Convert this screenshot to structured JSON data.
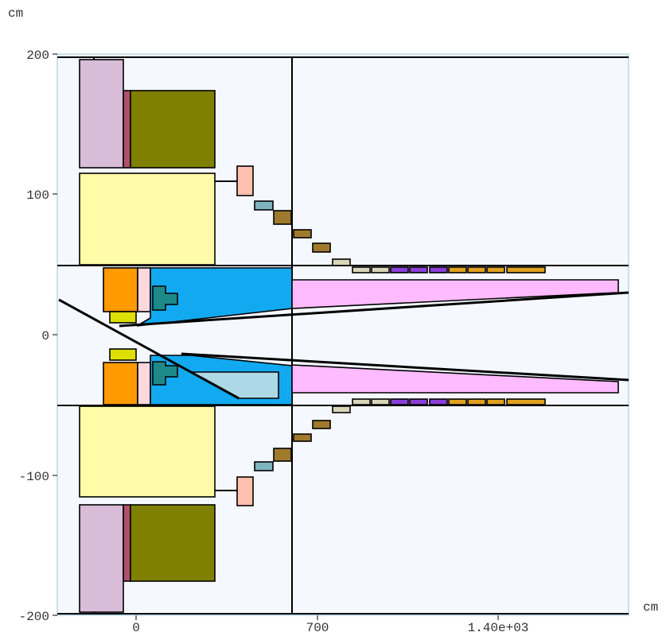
{
  "axes": {
    "y_unit": "cm",
    "x_unit": "cm",
    "y_ticks": [
      {
        "value": 200,
        "label": "200"
      },
      {
        "value": 100,
        "label": "100"
      },
      {
        "value": 0,
        "label": "0"
      },
      {
        "value": -100,
        "label": "-100"
      },
      {
        "value": -200,
        "label": "-200"
      }
    ],
    "x_ticks": [
      {
        "value": 0,
        "label": "0"
      },
      {
        "value": 700,
        "label": "700"
      },
      {
        "value": 1400,
        "label": "1.40e+03"
      }
    ]
  },
  "colors": {
    "plot_background": "#f5f8ff",
    "plot_border": "#b8d8e8",
    "lavender": "#d9bcd8",
    "crimson": "#b0506a",
    "olive": "#808000",
    "light_yellow": "#fffba6",
    "salmon": "#ffc0b0",
    "grey_teal": "#7fb3bd",
    "brown_gold": "#a07a2c",
    "beige": "#d8d6b8",
    "purple": "#8a3fd6",
    "orange": "#ff9a00",
    "orange_gold": "#e0a020",
    "pale_pink": "#ffd8dc",
    "yellow_green": "#dde000",
    "teal": "#1d8a8a",
    "azure": "#13a9f0",
    "pink": "#ffbbff",
    "light_blue": "#add8e6"
  },
  "diagram": {
    "regions": [
      {
        "name": "lavender-block-top",
        "color": "lavender"
      },
      {
        "name": "lavender-block-bottom",
        "color": "lavender"
      },
      {
        "name": "crimson-strip-top",
        "color": "crimson"
      },
      {
        "name": "crimson-strip-bottom",
        "color": "crimson"
      },
      {
        "name": "olive-block-top",
        "color": "olive"
      },
      {
        "name": "olive-block-bottom",
        "color": "olive"
      },
      {
        "name": "yellow-block-top",
        "color": "light_yellow"
      },
      {
        "name": "yellow-block-bottom",
        "color": "light_yellow"
      },
      {
        "name": "salmon-block-top",
        "color": "salmon"
      },
      {
        "name": "salmon-block-bottom",
        "color": "salmon"
      },
      {
        "name": "orange-block-top",
        "color": "orange"
      },
      {
        "name": "orange-block-bottom",
        "color": "orange"
      },
      {
        "name": "azure-region-top",
        "color": "azure"
      },
      {
        "name": "azure-region-bottom",
        "color": "azure"
      },
      {
        "name": "pink-cone-top",
        "color": "pink"
      },
      {
        "name": "pink-cone-bottom",
        "color": "pink"
      },
      {
        "name": "light-blue-wedge",
        "color": "light_blue"
      },
      {
        "name": "teal-stack-top",
        "color": "teal"
      },
      {
        "name": "teal-stack-bottom",
        "color": "teal"
      },
      {
        "name": "yellow-green-block-top",
        "color": "yellow_green"
      },
      {
        "name": "yellow-green-block-bottom",
        "color": "yellow_green"
      },
      {
        "name": "segment-chain-top",
        "color": "brown_gold"
      },
      {
        "name": "segment-chain-bottom",
        "color": "brown_gold"
      }
    ]
  }
}
